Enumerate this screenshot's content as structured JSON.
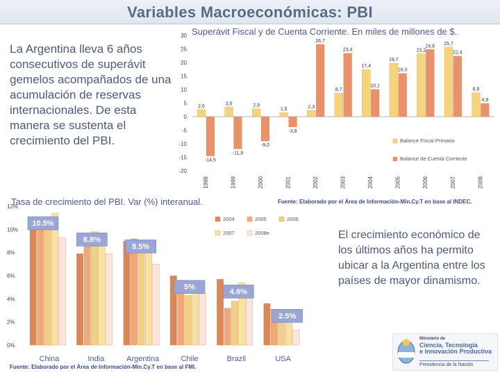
{
  "slide_title": "Variables Macroeconómicas: PBI",
  "intro_text": "La Argentina lleva 6 años consecutivos de superávit gemelos acompañados de una acumulación de reservas internacionales. De esta manera se sustenta el crecimiento del PBI.",
  "closing_text": "El crecimiento económico de los últimos años ha permito ubicar a la Argentina entre los países de mayor dinamismo.",
  "logo": {
    "line1": "Ministerio de",
    "line2": "Ciencia, Tecnología",
    "line3": "e Innovación Productiva",
    "line4": "Presidencia de la Nación"
  },
  "chart_data": [
    {
      "type": "bar",
      "title": "Superávit Fiscal y de Cuenta Corriente. En miles de millones de $.",
      "source": "Fuente: Elaborado por el Área de Información-Min.Cy.T en base al INDEC.",
      "categories": [
        "1998",
        "1999",
        "2000",
        "2001",
        "2002",
        "2003",
        "2004",
        "2005",
        "2006",
        "2007",
        "2008"
      ],
      "ylim": [
        -20,
        30
      ],
      "yticks": [
        30,
        25,
        20,
        15,
        10,
        5,
        0,
        -5,
        -10,
        -15,
        -20
      ],
      "series": [
        {
          "name": "Balance Fiscal Primario",
          "color": "#f5d57a",
          "values": [
            2.6,
            3.5,
            2.9,
            1.5,
            2.3,
            8.7,
            17.4,
            19.7,
            23.2,
            25.7,
            8.8
          ]
        },
        {
          "name": "Balance de Cuenta Corriente",
          "color": "#e8916b",
          "values": [
            -14.5,
            -11.9,
            -9.0,
            -3.8,
            26.7,
            23.4,
            10.1,
            16.0,
            24.8,
            22.4,
            4.9
          ]
        }
      ],
      "value_labels": [
        [
          "2,6",
          "3,5",
          "2,9",
          "1,5",
          "2,3",
          "8,7",
          "17,4",
          "19,7",
          "23,2",
          "25,7",
          "8,8"
        ],
        [
          "-14,5",
          "-11,9",
          "-9,0",
          "-3,8",
          "26,7",
          "23,4",
          "10,1",
          "16,0",
          "24,8",
          "22,4",
          "4,9"
        ]
      ],
      "legend_position": "bottom-right"
    },
    {
      "type": "bar",
      "title": "Tasa de crecimiento del PBI. Var (%) interanual.",
      "source": "Fuente: Elaborado por el Área de Información-Min.Cy.T en base al FMI.",
      "categories": [
        "China",
        "India",
        "Argentina",
        "Chile",
        "Brazil",
        "USA"
      ],
      "ylim": [
        0,
        12
      ],
      "yticks": [
        "12%",
        "10%",
        "8%",
        "6%",
        "4%",
        "2%",
        "0%"
      ],
      "series": [
        {
          "name": "2004",
          "color": "#d9885a",
          "values": [
            10.1,
            7.9,
            9.0,
            6.0,
            5.7,
            3.6
          ]
        },
        {
          "name": "2005",
          "color": "#f0a878",
          "values": [
            10.4,
            9.2,
            9.2,
            5.6,
            3.2,
            3.1
          ]
        },
        {
          "name": "2006",
          "color": "#f2cf84",
          "values": [
            11.1,
            9.8,
            8.5,
            4.3,
            3.8,
            2.7
          ]
        },
        {
          "name": "2007",
          "color": "#f7e2a2",
          "values": [
            11.4,
            9.3,
            8.7,
            5.1,
            5.4,
            2.0
          ]
        },
        {
          "name": "2008e",
          "color": "#fbe5dc",
          "values": [
            9.3,
            7.9,
            7.0,
            4.5,
            4.8,
            1.3
          ]
        }
      ],
      "average_labels": [
        "10.5%",
        "8.8%",
        "8.5%",
        "5%",
        "4.6%",
        "2.5%"
      ],
      "average_color": "#9aa6d6",
      "legend_position": "top-right"
    }
  ]
}
